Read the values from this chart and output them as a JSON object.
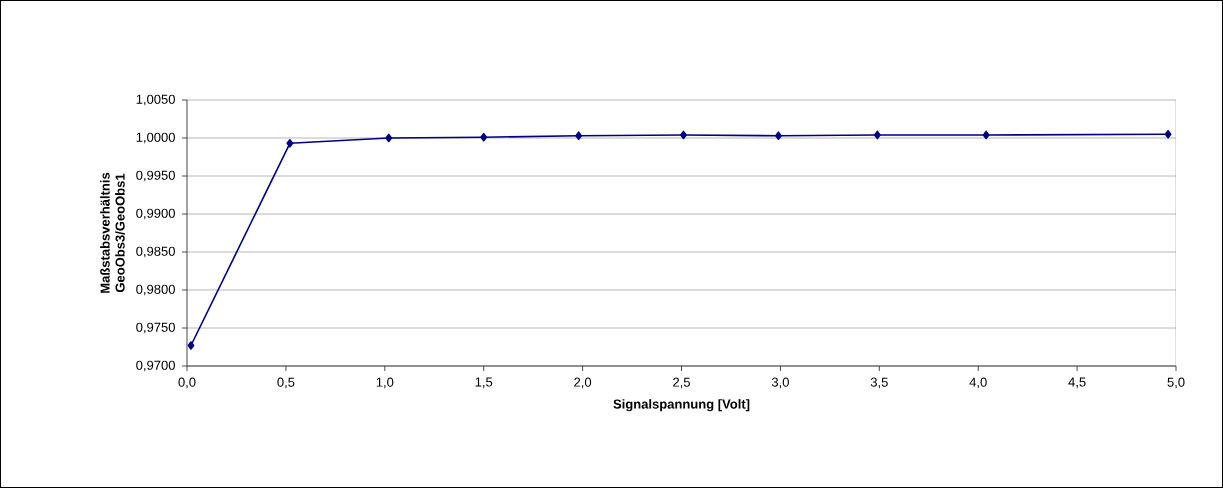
{
  "chart_data": {
    "type": "line",
    "xlabel": "Signalspannung [Volt]",
    "ylabel": "Maßstabsverhältnis GeoObs3/GeoObs1",
    "x": [
      0.02,
      0.52,
      1.02,
      1.5,
      1.98,
      2.51,
      2.99,
      3.49,
      4.04,
      4.96
    ],
    "series": [
      {
        "color": "#000080",
        "values": [
          0.9727,
          0.9993,
          1.0,
          1.0001,
          1.0003,
          1.0004,
          1.0003,
          1.0004,
          1.0004,
          1.0005
        ]
      }
    ],
    "xlim": [
      0,
      5
    ],
    "ylim": [
      0.97,
      1.005
    ],
    "xticks": [
      {
        "value": 0,
        "label": "0,0"
      },
      {
        "value": 0.5,
        "label": "0,5"
      },
      {
        "value": 1,
        "label": "1,0"
      },
      {
        "value": 1.5,
        "label": "1,5"
      },
      {
        "value": 2,
        "label": "2,0"
      },
      {
        "value": 2.5,
        "label": "2,5"
      },
      {
        "value": 3,
        "label": "3,0"
      },
      {
        "value": 3.5,
        "label": "3,5"
      },
      {
        "value": 4,
        "label": "4,0"
      },
      {
        "value": 4.5,
        "label": "4,5"
      },
      {
        "value": 5,
        "label": "5,0"
      }
    ],
    "yticks": [
      {
        "value": 0.97,
        "label": "0,9700"
      },
      {
        "value": 0.975,
        "label": "0,9750"
      },
      {
        "value": 0.98,
        "label": "0,9800"
      },
      {
        "value": 0.985,
        "label": "0,9850"
      },
      {
        "value": 0.99,
        "label": "0,9900"
      },
      {
        "value": 0.995,
        "label": "0,9950"
      },
      {
        "value": 1.0,
        "label": "1,0000"
      },
      {
        "value": 1.005,
        "label": "1,0050"
      }
    ],
    "grid": "y",
    "marker": "diamond",
    "line_style": "solid"
  }
}
